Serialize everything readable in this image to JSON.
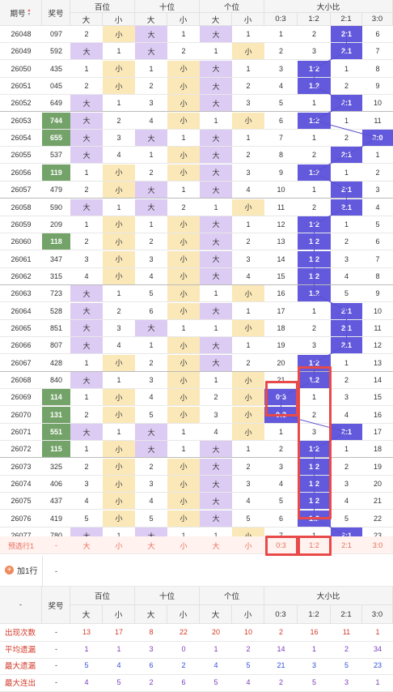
{
  "header": {
    "col_issue": "期号",
    "col_number": "奖号",
    "col_bai": "百位",
    "col_shi": "十位",
    "col_ge": "个位",
    "col_ratio": "大小比",
    "sub_big": "大",
    "sub_small": "小",
    "ratios": [
      "0:3",
      "1:2",
      "2:1",
      "3:0"
    ]
  },
  "rows": [
    {
      "issue": "26048",
      "num": "097",
      "bai": [
        "2",
        "小"
      ],
      "shi": [
        "大",
        "1"
      ],
      "ge": [
        "大",
        "1"
      ],
      "r": [
        "1",
        "2",
        "2:1",
        "6"
      ],
      "hit": 2
    },
    {
      "issue": "26049",
      "num": "592",
      "bai": [
        "大",
        "1"
      ],
      "shi": [
        "大",
        "2"
      ],
      "ge": [
        "1",
        "小"
      ],
      "r": [
        "2",
        "3",
        "2:1",
        "7"
      ],
      "hit": 2
    },
    {
      "issue": "26050",
      "num": "435",
      "bai": [
        "1",
        "小"
      ],
      "shi": [
        "1",
        "小"
      ],
      "ge": [
        "大",
        "1"
      ],
      "r": [
        "3",
        "1:2",
        "1",
        "8"
      ],
      "hit": 1
    },
    {
      "issue": "26051",
      "num": "045",
      "bai": [
        "2",
        "小"
      ],
      "shi": [
        "2",
        "小"
      ],
      "ge": [
        "大",
        "2"
      ],
      "r": [
        "4",
        "1:2",
        "2",
        "9"
      ],
      "hit": 1
    },
    {
      "issue": "26052",
      "num": "649",
      "bai": [
        "大",
        "1"
      ],
      "shi": [
        "3",
        "小"
      ],
      "ge": [
        "大",
        "3"
      ],
      "r": [
        "5",
        "1",
        "2:1",
        "10"
      ],
      "hit": 2
    },
    {
      "issue": "26053",
      "num": "744",
      "bai": [
        "大",
        "2"
      ],
      "shi": [
        "4",
        "小"
      ],
      "ge": [
        "1",
        "小"
      ],
      "r": [
        "6",
        "1:2",
        "1",
        "11"
      ],
      "hit": 1,
      "green": true
    },
    {
      "issue": "26054",
      "num": "655",
      "bai": [
        "大",
        "3"
      ],
      "shi": [
        "大",
        "1"
      ],
      "ge": [
        "大",
        "1"
      ],
      "r": [
        "7",
        "1",
        "2",
        "3:0"
      ],
      "hit": 3,
      "green": true
    },
    {
      "issue": "26055",
      "num": "537",
      "bai": [
        "大",
        "4"
      ],
      "shi": [
        "1",
        "小"
      ],
      "ge": [
        "大",
        "2"
      ],
      "r": [
        "8",
        "2",
        "2:1",
        "1"
      ],
      "hit": 2
    },
    {
      "issue": "26056",
      "num": "119",
      "bai": [
        "1",
        "小"
      ],
      "shi": [
        "2",
        "小"
      ],
      "ge": [
        "大",
        "3"
      ],
      "r": [
        "9",
        "1:2",
        "1",
        "2"
      ],
      "hit": 1,
      "green": true
    },
    {
      "issue": "26057",
      "num": "479",
      "bai": [
        "2",
        "小"
      ],
      "shi": [
        "大",
        "1"
      ],
      "ge": [
        "大",
        "4"
      ],
      "r": [
        "10",
        "1",
        "2:1",
        "3"
      ],
      "hit": 2
    },
    {
      "issue": "26058",
      "num": "590",
      "bai": [
        "大",
        "1"
      ],
      "shi": [
        "大",
        "2"
      ],
      "ge": [
        "1",
        "小"
      ],
      "r": [
        "11",
        "2",
        "2:1",
        "4"
      ],
      "hit": 2
    },
    {
      "issue": "26059",
      "num": "209",
      "bai": [
        "1",
        "小"
      ],
      "shi": [
        "1",
        "小"
      ],
      "ge": [
        "大",
        "1"
      ],
      "r": [
        "12",
        "1:2",
        "1",
        "5"
      ],
      "hit": 1
    },
    {
      "issue": "26060",
      "num": "118",
      "bai": [
        "2",
        "小"
      ],
      "shi": [
        "2",
        "小"
      ],
      "ge": [
        "大",
        "2"
      ],
      "r": [
        "13",
        "1:2",
        "2",
        "6"
      ],
      "hit": 1,
      "green": true
    },
    {
      "issue": "26061",
      "num": "347",
      "bai": [
        "3",
        "小"
      ],
      "shi": [
        "3",
        "小"
      ],
      "ge": [
        "大",
        "3"
      ],
      "r": [
        "14",
        "1:2",
        "3",
        "7"
      ],
      "hit": 1
    },
    {
      "issue": "26062",
      "num": "315",
      "bai": [
        "4",
        "小"
      ],
      "shi": [
        "4",
        "小"
      ],
      "ge": [
        "大",
        "4"
      ],
      "r": [
        "15",
        "1:2",
        "4",
        "8"
      ],
      "hit": 1
    },
    {
      "issue": "26063",
      "num": "723",
      "bai": [
        "大",
        "1"
      ],
      "shi": [
        "5",
        "小"
      ],
      "ge": [
        "1",
        "小"
      ],
      "r": [
        "16",
        "1:2",
        "5",
        "9"
      ],
      "hit": 1
    },
    {
      "issue": "26064",
      "num": "528",
      "bai": [
        "大",
        "2"
      ],
      "shi": [
        "6",
        "小"
      ],
      "ge": [
        "大",
        "1"
      ],
      "r": [
        "17",
        "1",
        "2:1",
        "10"
      ],
      "hit": 2
    },
    {
      "issue": "26065",
      "num": "851",
      "bai": [
        "大",
        "3"
      ],
      "shi": [
        "大",
        "1"
      ],
      "ge": [
        "1",
        "小"
      ],
      "r": [
        "18",
        "2",
        "2:1",
        "11"
      ],
      "hit": 2
    },
    {
      "issue": "26066",
      "num": "807",
      "bai": [
        "大",
        "4"
      ],
      "shi": [
        "1",
        "小"
      ],
      "ge": [
        "大",
        "1"
      ],
      "r": [
        "19",
        "3",
        "2:1",
        "12"
      ],
      "hit": 2
    },
    {
      "issue": "26067",
      "num": "428",
      "bai": [
        "1",
        "小"
      ],
      "shi": [
        "2",
        "小"
      ],
      "ge": [
        "大",
        "2"
      ],
      "r": [
        "20",
        "1:2",
        "1",
        "13"
      ],
      "hit": 1
    },
    {
      "issue": "26068",
      "num": "840",
      "bai": [
        "大",
        "1"
      ],
      "shi": [
        "3",
        "小"
      ],
      "ge": [
        "1",
        "小"
      ],
      "r": [
        "21",
        "1:2",
        "2",
        "14"
      ],
      "hit": 1
    },
    {
      "issue": "26069",
      "num": "114",
      "bai": [
        "1",
        "小"
      ],
      "shi": [
        "4",
        "小"
      ],
      "ge": [
        "2",
        "小"
      ],
      "r": [
        "0:3",
        "1",
        "3",
        "15"
      ],
      "hit": 0,
      "green": true
    },
    {
      "issue": "26070",
      "num": "131",
      "bai": [
        "2",
        "小"
      ],
      "shi": [
        "5",
        "小"
      ],
      "ge": [
        "3",
        "小"
      ],
      "r": [
        "0:3",
        "2",
        "4",
        "16"
      ],
      "hit": 0,
      "green": true
    },
    {
      "issue": "26071",
      "num": "551",
      "bai": [
        "大",
        "1"
      ],
      "shi": [
        "大",
        "1"
      ],
      "ge": [
        "4",
        "小"
      ],
      "r": [
        "1",
        "3",
        "2:1",
        "17"
      ],
      "hit": 2,
      "green": true
    },
    {
      "issue": "26072",
      "num": "115",
      "bai": [
        "1",
        "小"
      ],
      "shi": [
        "大",
        "1"
      ],
      "ge": [
        "大",
        "1"
      ],
      "r": [
        "2",
        "1:2",
        "1",
        "18"
      ],
      "hit": 1,
      "green": true
    },
    {
      "issue": "26073",
      "num": "325",
      "bai": [
        "2",
        "小"
      ],
      "shi": [
        "2",
        "小"
      ],
      "ge": [
        "大",
        "2"
      ],
      "r": [
        "3",
        "1:2",
        "2",
        "19"
      ],
      "hit": 1
    },
    {
      "issue": "26074",
      "num": "406",
      "bai": [
        "3",
        "小"
      ],
      "shi": [
        "3",
        "小"
      ],
      "ge": [
        "大",
        "3"
      ],
      "r": [
        "4",
        "1:2",
        "3",
        "20"
      ],
      "hit": 1
    },
    {
      "issue": "26075",
      "num": "437",
      "bai": [
        "4",
        "小"
      ],
      "shi": [
        "4",
        "小"
      ],
      "ge": [
        "大",
        "4"
      ],
      "r": [
        "5",
        "1:2",
        "4",
        "21"
      ],
      "hit": 1
    },
    {
      "issue": "26076",
      "num": "419",
      "bai": [
        "5",
        "小"
      ],
      "shi": [
        "5",
        "小"
      ],
      "ge": [
        "大",
        "5"
      ],
      "r": [
        "6",
        "1:2",
        "5",
        "22"
      ],
      "hit": 1
    },
    {
      "issue": "26077",
      "num": "780",
      "bai": [
        "大",
        "1"
      ],
      "shi": [
        "大",
        "1"
      ],
      "ge": [
        "1",
        "小"
      ],
      "r": [
        "7",
        "1",
        "2:1",
        "23"
      ],
      "hit": 2
    }
  ],
  "predict": {
    "label": "预选行1",
    "num": "-",
    "cells": [
      "大",
      "小",
      "大",
      "小",
      "大",
      "小",
      "0:3",
      "1:2",
      "2:1",
      "3:0"
    ]
  },
  "add_row": {
    "label": "加1行",
    "value": "-"
  },
  "stats_header": {
    "dash": "-",
    "col_number": "奖号"
  },
  "stats": [
    {
      "label": "出现次数",
      "num": "-",
      "vals": [
        "13",
        "17",
        "8",
        "22",
        "20",
        "10",
        "2",
        "16",
        "11",
        "1"
      ],
      "color": "red"
    },
    {
      "label": "平均遗漏",
      "num": "-",
      "vals": [
        "1",
        "1",
        "3",
        "0",
        "1",
        "2",
        "14",
        "1",
        "2",
        "34"
      ],
      "color": "purple"
    },
    {
      "label": "最大遗漏",
      "num": "-",
      "vals": [
        "5",
        "4",
        "6",
        "2",
        "4",
        "5",
        "21",
        "3",
        "5",
        "23"
      ],
      "color": "blue"
    },
    {
      "label": "最大连出",
      "num": "-",
      "vals": [
        "4",
        "5",
        "2",
        "6",
        "5",
        "4",
        "2",
        "5",
        "3",
        "1"
      ],
      "color": "purple"
    }
  ],
  "colors": {
    "big_bg": "#dccbf3",
    "small_bg": "#fbe8b8",
    "hit_bg": "#6359dc",
    "green_bg": "#74a36a",
    "red_box": "#e84a4a"
  }
}
